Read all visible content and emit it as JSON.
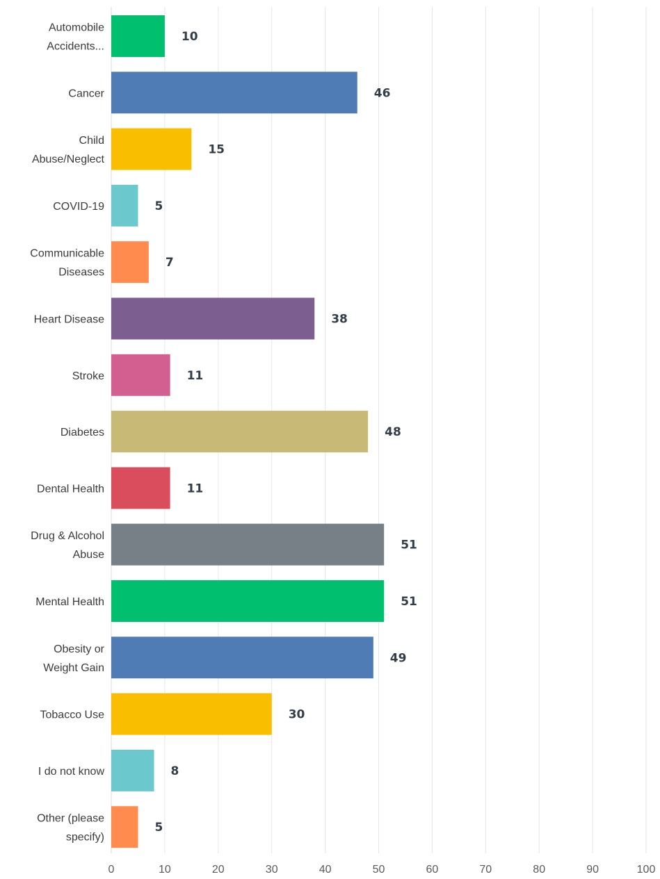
{
  "chart_data": {
    "type": "bar",
    "orientation": "horizontal",
    "title": "",
    "xlabel": "",
    "ylabel": "",
    "xlim": [
      0,
      100
    ],
    "grid": true,
    "legend": "none",
    "x_ticks": [
      "0",
      "10",
      "20",
      "30",
      "40",
      "50",
      "60",
      "70",
      "80",
      "90",
      "100"
    ],
    "categories": [
      [
        "Automobile",
        "Accidents..."
      ],
      [
        "Cancer"
      ],
      [
        "Child",
        "Abuse/Neglect"
      ],
      [
        "COVID-19"
      ],
      [
        "Communicable",
        "Diseases"
      ],
      [
        "Heart Disease"
      ],
      [
        "Stroke"
      ],
      [
        "Diabetes"
      ],
      [
        "Dental Health"
      ],
      [
        "Drug & Alcohol",
        "Abuse"
      ],
      [
        "Mental Health"
      ],
      [
        "Obesity or",
        "Weight Gain"
      ],
      [
        "Tobacco Use"
      ],
      [
        "I do not know"
      ],
      [
        "Other (please",
        "specify)"
      ]
    ],
    "values": [
      10,
      46,
      15,
      5,
      7,
      38,
      11,
      48,
      11,
      51,
      51,
      49,
      30,
      8,
      5
    ],
    "value_labels": [
      "10",
      "46",
      "15",
      "5",
      "7",
      "38",
      "11",
      "48",
      "11",
      "51",
      "51",
      "49",
      "30",
      "8",
      "5"
    ],
    "colors": [
      "#00bf6f",
      "#507cb6",
      "#f9be00",
      "#6bc8cd",
      "#ff8b4f",
      "#7d5e90",
      "#d25f90",
      "#c9b977",
      "#d94d5d",
      "#778086",
      "#00bf6f",
      "#507cb6",
      "#f9be00",
      "#6bc8cd",
      "#ff8b4f"
    ]
  }
}
